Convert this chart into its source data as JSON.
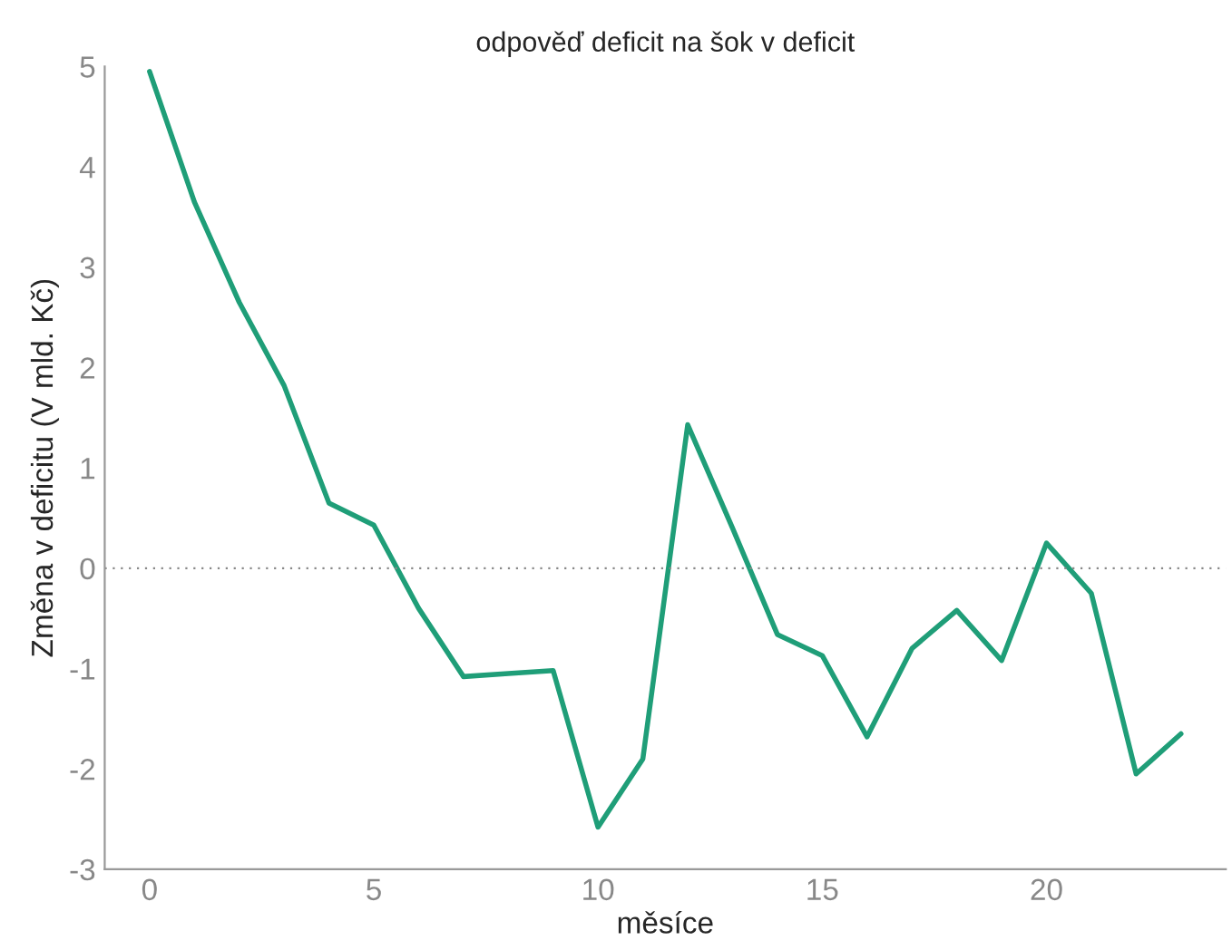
{
  "chart_data": {
    "type": "line",
    "title": "odpověď deficit na šok v deficit",
    "xlabel": "měsíce",
    "ylabel": "Změna v deficitu (V mld. Kč)",
    "x": [
      0,
      1,
      2,
      3,
      4,
      5,
      6,
      7,
      8,
      9,
      10,
      11,
      12,
      13,
      14,
      15,
      16,
      17,
      18,
      19,
      20,
      21,
      22,
      23
    ],
    "series": [
      {
        "color": "#1f9e78",
        "values": [
          4.95,
          3.65,
          2.65,
          1.82,
          0.65,
          0.43,
          -0.4,
          -1.08,
          -1.05,
          -1.02,
          -2.58,
          -1.9,
          1.43,
          0.4,
          -0.66,
          -0.87,
          -1.68,
          -0.8,
          -0.42,
          -0.92,
          0.25,
          -0.25,
          -2.05,
          -1.65
        ]
      }
    ],
    "xlim": [
      -1,
      24
    ],
    "xticks": [
      0,
      5,
      10,
      15,
      20
    ],
    "ylim": [
      -3,
      5
    ],
    "yticks": [
      -3,
      -2,
      -1,
      0,
      1,
      2,
      3,
      4,
      5
    ],
    "ref_lines": [
      {
        "axis": "y",
        "value": 0,
        "color": "#888888",
        "line_style": "dotted"
      }
    ],
    "grid": false,
    "legend": false,
    "marker": "none",
    "line_style": "solid"
  }
}
